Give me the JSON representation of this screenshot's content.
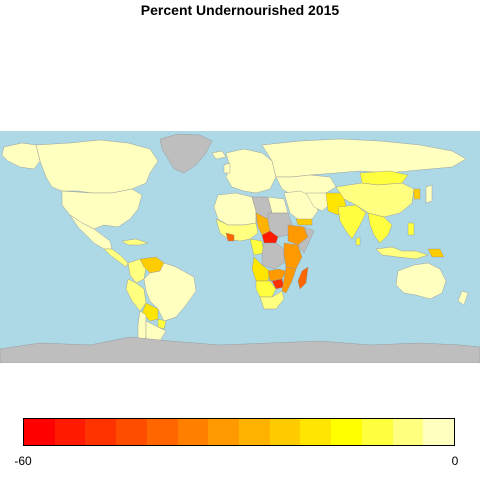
{
  "title": "Percent Undernourished 2015",
  "colors": {
    "ocean": "#add8e6",
    "no_data": "#bebebe",
    "land_border": "#8f8f8f"
  },
  "legend": {
    "min_label": "-60",
    "max_label": "0",
    "min": -60,
    "max": 0,
    "palette": [
      "#ff0000",
      "#ff1a00",
      "#ff3300",
      "#ff4d00",
      "#ff6600",
      "#ff8000",
      "#ff9900",
      "#ffb300",
      "#ffcc00",
      "#ffe600",
      "#ffff00",
      "#ffff40",
      "#ffff80",
      "#ffffbf"
    ]
  },
  "map_data": {
    "type": "choropleth",
    "regions": [
      {
        "name": "Canada",
        "category": 0
      },
      {
        "name": "United States",
        "category": 0
      },
      {
        "name": "Mexico",
        "category": 0
      },
      {
        "name": "Central America",
        "category": 11
      },
      {
        "name": "Colombia",
        "category": 11
      },
      {
        "name": "Venezuela",
        "category": 8
      },
      {
        "name": "Ecuador/Peru",
        "category": 11
      },
      {
        "name": "Bolivia",
        "category": 9
      },
      {
        "name": "Brazil",
        "category": 0
      },
      {
        "name": "Argentina",
        "category": 0
      },
      {
        "name": "Chile",
        "category": 0
      },
      {
        "name": "Paraguay",
        "category": 10
      },
      {
        "name": "Greenland",
        "category": -1
      },
      {
        "name": "Europe",
        "category": 0
      },
      {
        "name": "Russia",
        "category": 0
      },
      {
        "name": "North Africa",
        "category": 0
      },
      {
        "name": "Libya",
        "category": -1
      },
      {
        "name": "West Africa",
        "category": 11
      },
      {
        "name": "Sierra Leone/Liberia",
        "category": 4
      },
      {
        "name": "Chad",
        "category": 7
      },
      {
        "name": "Sudan",
        "category": -1
      },
      {
        "name": "Central African Republic",
        "category": 1
      },
      {
        "name": "Ethiopia",
        "category": 6
      },
      {
        "name": "DR Congo",
        "category": -1
      },
      {
        "name": "Kenya/Tanzania",
        "category": 6
      },
      {
        "name": "Angola",
        "category": 9
      },
      {
        "name": "Zambia",
        "category": 6
      },
      {
        "name": "Zimbabwe",
        "category": 2
      },
      {
        "name": "Mozambique",
        "category": 6
      },
      {
        "name": "Madagascar",
        "category": 4
      },
      {
        "name": "Namibia/Botswana",
        "category": 10
      },
      {
        "name": "South Africa",
        "category": 12
      },
      {
        "name": "Middle East",
        "category": 0
      },
      {
        "name": "Yemen",
        "category": 8
      },
      {
        "name": "Afghanistan/Pakistan",
        "category": 9
      },
      {
        "name": "India",
        "category": 10
      },
      {
        "name": "China",
        "category": 12
      },
      {
        "name": "Mongolia",
        "category": 10
      },
      {
        "name": "Southeast Asia",
        "category": 10
      },
      {
        "name": "Indonesia",
        "category": 11
      },
      {
        "name": "Australia",
        "category": 0
      },
      {
        "name": "Antarctica",
        "category": -1
      }
    ]
  }
}
